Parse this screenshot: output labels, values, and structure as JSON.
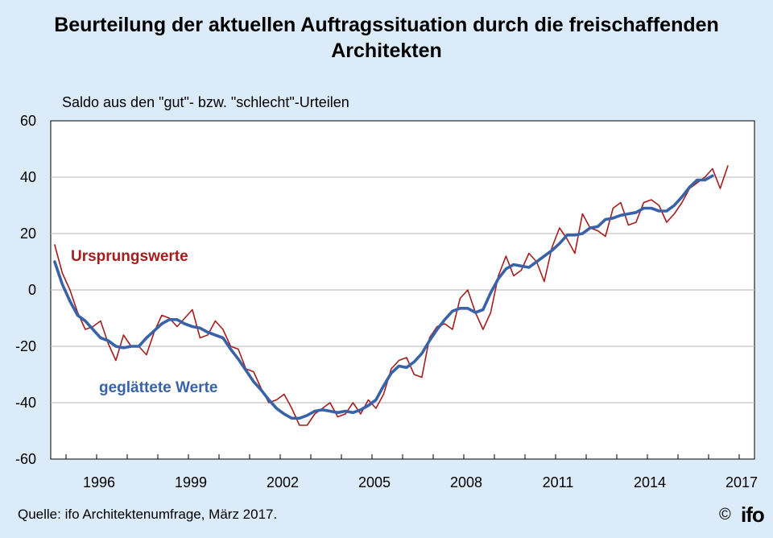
{
  "title_line1": "Beurteilung der aktuellen Auftragssituation durch die freischaffenden",
  "title_line2": "Architekten",
  "source": "Quelle: ifo Architektenumfrage, März 2017.",
  "copyright": "©",
  "logo": "ifo",
  "chart_data": {
    "type": "line",
    "ylabel": "Saldo aus den \"gut\"- bzw. \"schlecht\"-Urteilen",
    "xlabel": "",
    "xlim": [
      1994.5,
      2017.5
    ],
    "ylim": [
      -60,
      60
    ],
    "y_ticks": [
      60,
      40,
      20,
      0,
      -20,
      -40,
      -60
    ],
    "y_tick_labels": [
      "60",
      "40",
      "20",
      "0",
      "-20",
      "-40",
      "-60"
    ],
    "x_ticks": [
      1996,
      1999,
      2002,
      2005,
      2008,
      2011,
      2014,
      2017
    ],
    "x_tick_labels": [
      "1996",
      "1999",
      "2002",
      "2005",
      "2008",
      "2011",
      "2014",
      "2017"
    ],
    "grid": "horizontal",
    "series": [
      {
        "name": "Ursprungswerte",
        "color": "#a51e1e",
        "x": [
          1994.63,
          1994.88,
          1995.13,
          1995.38,
          1995.63,
          1995.88,
          1996.13,
          1996.38,
          1996.63,
          1996.88,
          1997.13,
          1997.38,
          1997.63,
          1997.88,
          1998.13,
          1998.38,
          1998.63,
          1998.88,
          1999.13,
          1999.38,
          1999.63,
          1999.88,
          2000.13,
          2000.38,
          2000.63,
          2000.88,
          2001.13,
          2001.38,
          2001.63,
          2001.88,
          2002.13,
          2002.38,
          2002.63,
          2002.88,
          2003.13,
          2003.38,
          2003.63,
          2003.88,
          2004.13,
          2004.38,
          2004.63,
          2004.88,
          2005.13,
          2005.38,
          2005.63,
          2005.88,
          2006.13,
          2006.38,
          2006.63,
          2006.88,
          2007.13,
          2007.38,
          2007.63,
          2007.88,
          2008.13,
          2008.38,
          2008.63,
          2008.88,
          2009.13,
          2009.38,
          2009.63,
          2009.88,
          2010.13,
          2010.38,
          2010.63,
          2010.88,
          2011.13,
          2011.38,
          2011.63,
          2011.88,
          2012.13,
          2012.38,
          2012.63,
          2012.88,
          2013.13,
          2013.38,
          2013.63,
          2013.88,
          2014.13,
          2014.38,
          2014.63,
          2014.88,
          2015.13,
          2015.38,
          2015.63,
          2015.88,
          2016.13,
          2016.38,
          2016.63
        ],
        "values": [
          16,
          6,
          0,
          -8,
          -14,
          -13,
          -11,
          -19,
          -25,
          -16,
          -20,
          -20,
          -23,
          -15,
          -9,
          -10,
          -13,
          -10,
          -7,
          -17,
          -16,
          -11,
          -14,
          -20,
          -21,
          -28,
          -29,
          -35,
          -40,
          -39,
          -37,
          -42,
          -48,
          -48,
          -44,
          -42,
          -40,
          -45,
          -44,
          -40,
          -44,
          -39,
          -42,
          -37,
          -28,
          -25,
          -24,
          -30,
          -31,
          -17,
          -13,
          -12,
          -14,
          -3,
          0,
          -8,
          -14,
          -8,
          5,
          12,
          5,
          7,
          13,
          10,
          3,
          15,
          22,
          18,
          13,
          27,
          22,
          21,
          19,
          29,
          31,
          23,
          24,
          31,
          32,
          30,
          24,
          27,
          31,
          36,
          38,
          40,
          43,
          36,
          44
        ]
      },
      {
        "name": "geglättete Werte",
        "color": "#3a62a8",
        "x": [
          1994.63,
          1994.88,
          1995.13,
          1995.38,
          1995.63,
          1995.88,
          1996.13,
          1996.38,
          1996.63,
          1996.88,
          1997.13,
          1997.38,
          1997.63,
          1997.88,
          1998.13,
          1998.38,
          1998.63,
          1998.88,
          1999.13,
          1999.38,
          1999.63,
          1999.88,
          2000.13,
          2000.38,
          2000.63,
          2000.88,
          2001.13,
          2001.38,
          2001.63,
          2001.88,
          2002.13,
          2002.38,
          2002.63,
          2002.88,
          2003.13,
          2003.38,
          2003.63,
          2003.88,
          2004.13,
          2004.38,
          2004.63,
          2004.88,
          2005.13,
          2005.38,
          2005.63,
          2005.88,
          2006.13,
          2006.38,
          2006.63,
          2006.88,
          2007.13,
          2007.38,
          2007.63,
          2007.88,
          2008.13,
          2008.38,
          2008.63,
          2008.88,
          2009.13,
          2009.38,
          2009.63,
          2009.88,
          2010.13,
          2010.38,
          2010.63,
          2010.88,
          2011.13,
          2011.38,
          2011.63,
          2011.88,
          2012.13,
          2012.38,
          2012.63,
          2012.88,
          2013.13,
          2013.38,
          2013.63,
          2013.88,
          2014.13,
          2014.38,
          2014.63,
          2014.88,
          2015.13,
          2015.38,
          2015.63,
          2015.88,
          2016.13
        ],
        "values": [
          10,
          2,
          -4,
          -9,
          -11,
          -14,
          -17,
          -18,
          -20,
          -20.5,
          -20,
          -20,
          -17,
          -14.5,
          -12,
          -10.5,
          -10.5,
          -12,
          -13,
          -13.5,
          -15,
          -16,
          -17,
          -21,
          -24.5,
          -28.5,
          -32.5,
          -35.5,
          -39,
          -42,
          -44,
          -45.5,
          -45.5,
          -44.5,
          -43,
          -42.5,
          -43,
          -43.5,
          -43,
          -43.5,
          -42.5,
          -41,
          -39,
          -34,
          -29.5,
          -27,
          -27.5,
          -25.5,
          -22.5,
          -18,
          -14,
          -10.5,
          -7.5,
          -6.5,
          -6.5,
          -8,
          -7,
          -1,
          4,
          7.5,
          9,
          8.5,
          8,
          10,
          12,
          14,
          16.5,
          19.5,
          19.5,
          20,
          22,
          22.5,
          25,
          25.5,
          26.5,
          27,
          27.5,
          29,
          29,
          28,
          28,
          30,
          33,
          36.5,
          39,
          39,
          40.5
        ]
      }
    ],
    "annotations": [
      {
        "text": "Ursprungswerte",
        "color": "#a51e1e"
      },
      {
        "text": "geglättete Werte",
        "color": "#3a62a8"
      }
    ]
  }
}
